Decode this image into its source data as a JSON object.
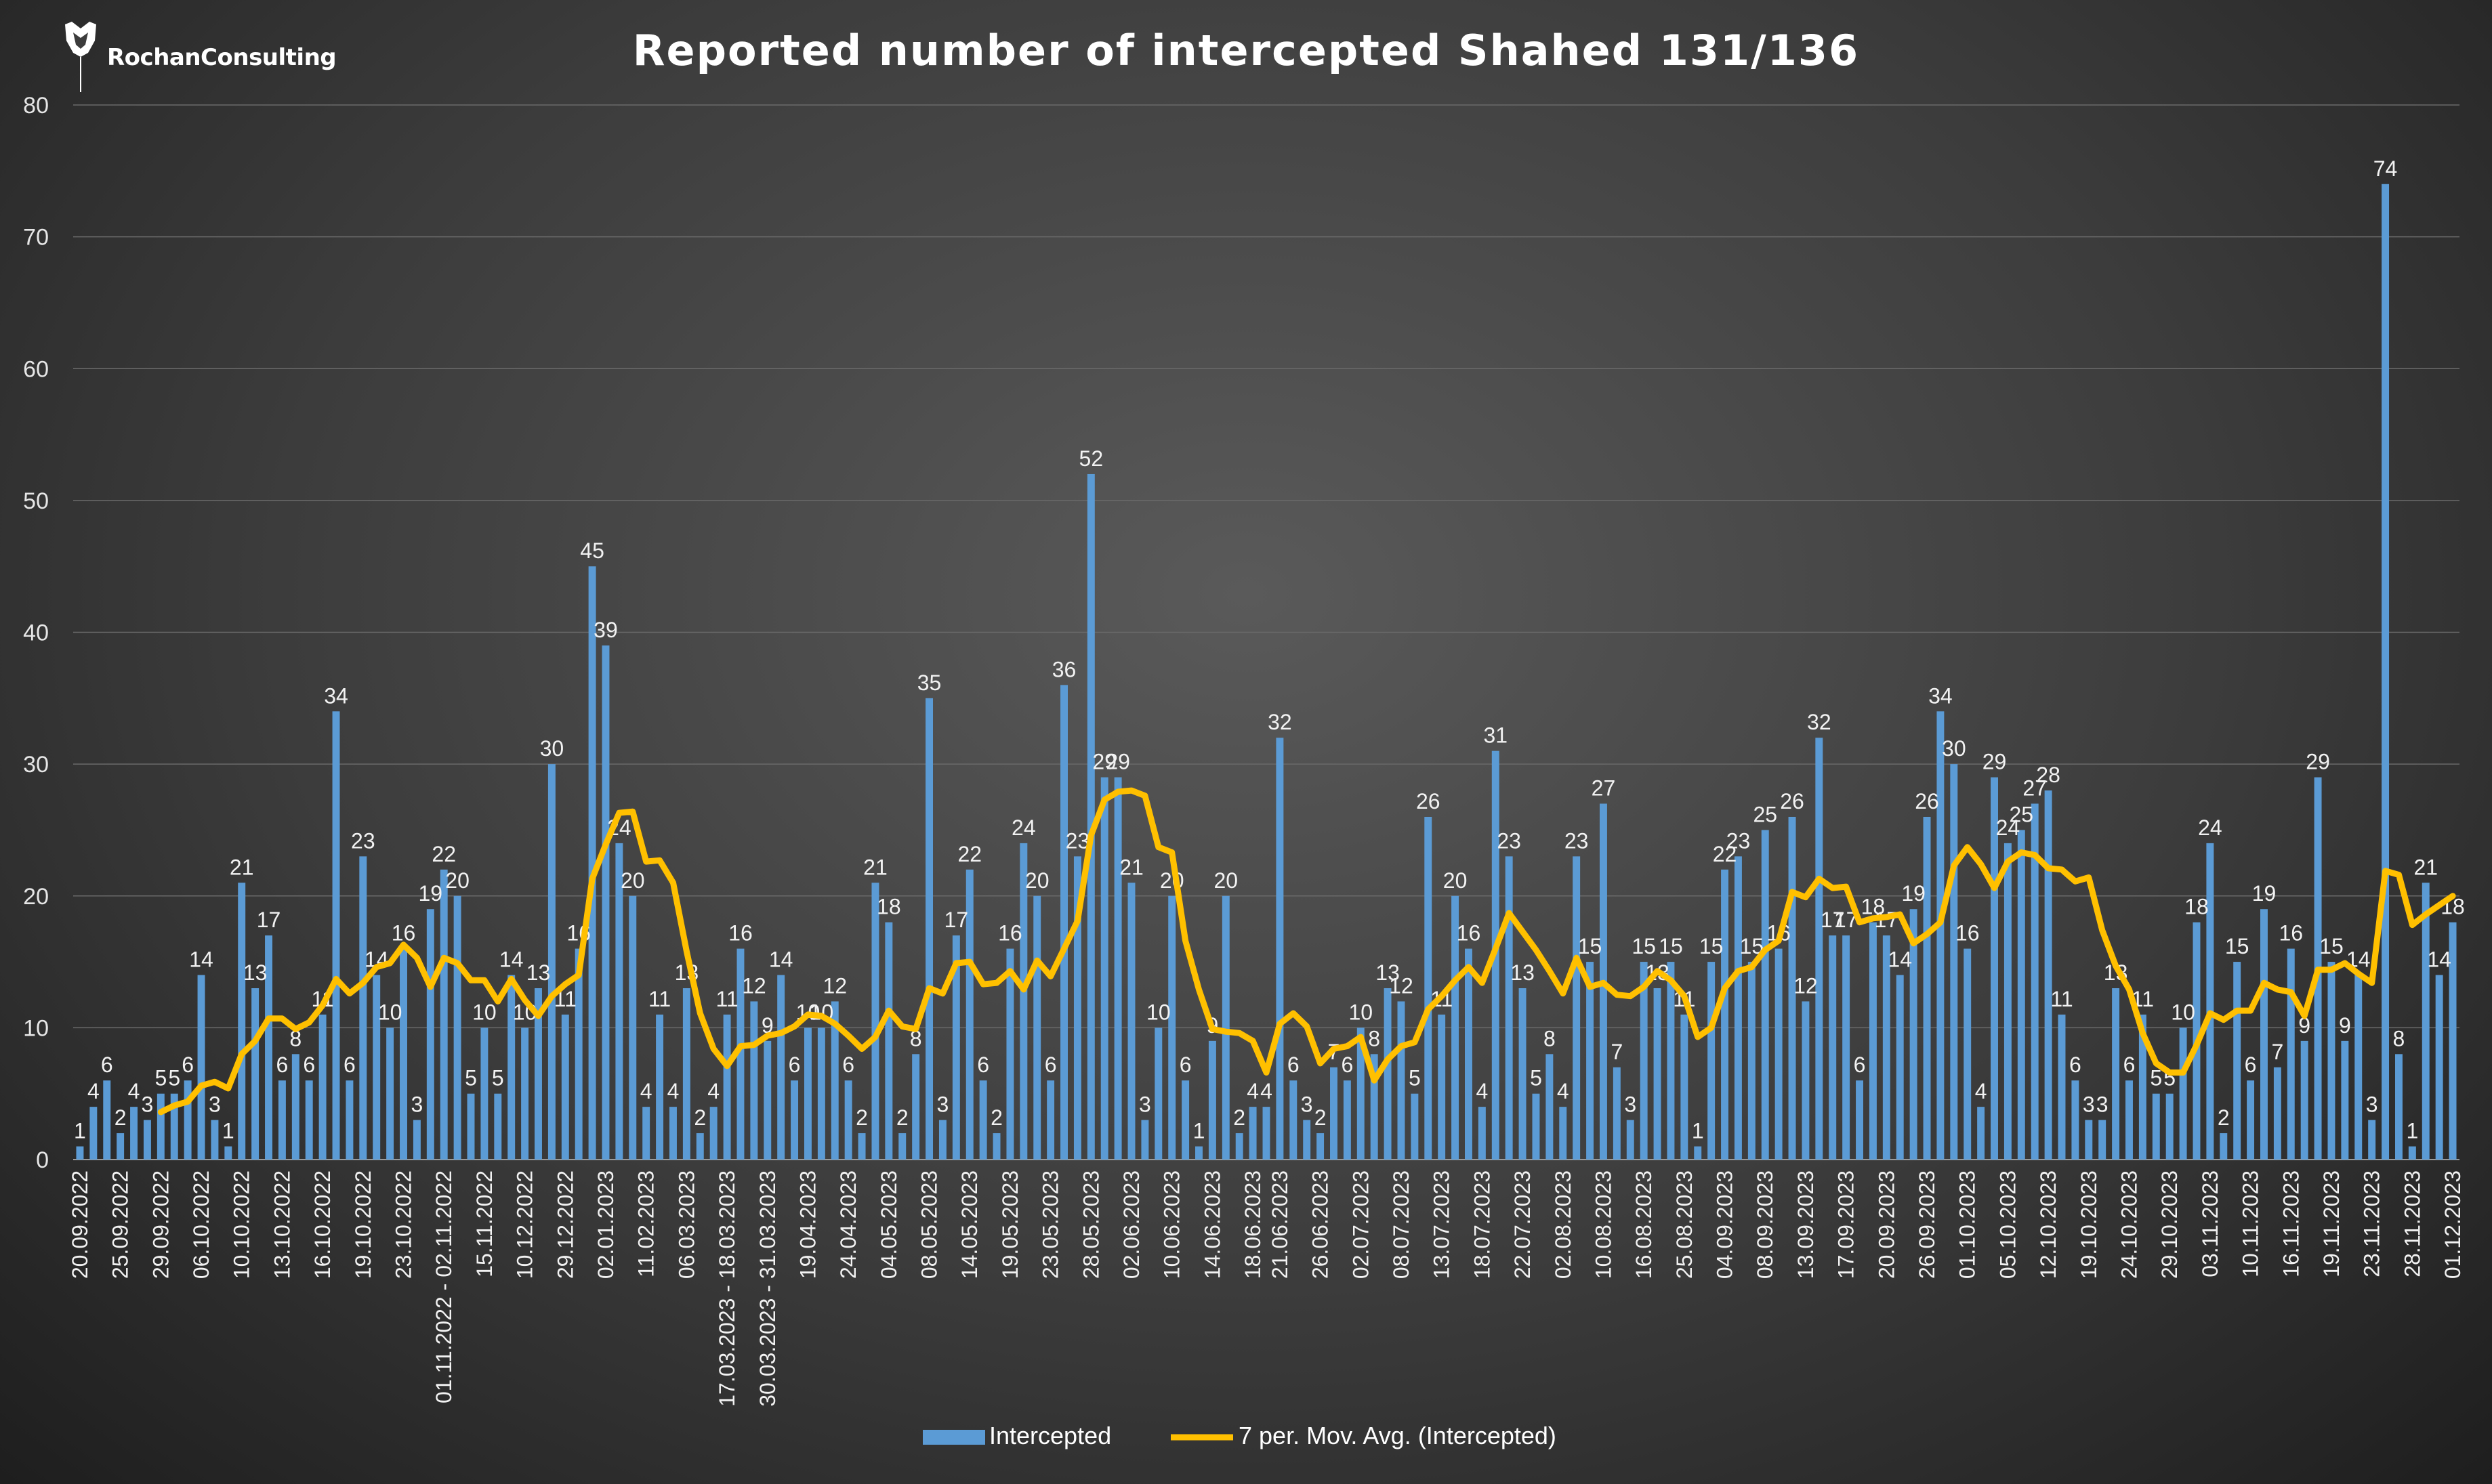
{
  "brand": {
    "name": "RochanConsulting"
  },
  "chart_data": {
    "type": "bar",
    "title": "Reported number of intercepted Shahed 131/136",
    "xlabel": "",
    "ylabel": "",
    "ylim": [
      0,
      80
    ],
    "yticks": [
      0,
      10,
      20,
      30,
      40,
      50,
      60,
      70,
      80
    ],
    "grid": true,
    "legend_position": "bottom",
    "colors": {
      "bar": "#5b9bd5",
      "line": "#ffc000",
      "text": "#ffffff",
      "grid": "#6a6a6a"
    },
    "x_tick_labels": [
      "20.09.2022",
      "25.09.2022",
      "29.09.2022",
      "06.10.2022",
      "10.10.2022",
      "13.10.2022",
      "16.10.2022",
      "19.10.2022",
      "23.10.2022",
      "01.11.2022 - 02.11.2022",
      "15.11.2022",
      "10.12.2022",
      "29.12.2022",
      "02.01.2023",
      "11.02.2023",
      "06.03.2023",
      "17.03.2023 - 18.03.2023",
      "30.03.2023 - 31.03.2023",
      "19.04.2023",
      "24.04.2023",
      "04.05.2023",
      "08.05.2023",
      "14.05.2023",
      "19.05.2023",
      "23.05.2023",
      "28.05.2023",
      "02.06.2023",
      "10.06.2023",
      "14.06.2023",
      "18.06.2023",
      "21.06.2023",
      "26.06.2023",
      "02.07.2023",
      "08.07.2023",
      "13.07.2023",
      "18.07.2023",
      "22.07.2023",
      "02.08.2023",
      "10.08.2023",
      "16.08.2023",
      "25.08.2023",
      "04.09.2023",
      "08.09.2023",
      "13.09.2023",
      "17.09.2023",
      "20.09.2023",
      "26.09.2023",
      "01.10.2023",
      "05.10.2023",
      "12.10.2023",
      "19.10.2023",
      "24.10.2023",
      "29.10.2023",
      "03.11.2023",
      "10.11.2023",
      "16.11.2023",
      "19.11.2023",
      "23.11.2023",
      "28.11.2023",
      "01.12.2023"
    ],
    "series": [
      {
        "name": "Intercepted",
        "type": "bar",
        "values": [
          1,
          4,
          6,
          2,
          4,
          3,
          5,
          5,
          6,
          14,
          3,
          1,
          21,
          13,
          17,
          6,
          8,
          6,
          11,
          34,
          6,
          23,
          14,
          10,
          16,
          3,
          19,
          22,
          20,
          5,
          10,
          5,
          14,
          10,
          13,
          30,
          11,
          16,
          45,
          39,
          24,
          20,
          4,
          11,
          4,
          13,
          2,
          4,
          11,
          16,
          12,
          9,
          14,
          6,
          10,
          10,
          12,
          6,
          2,
          21,
          18,
          2,
          8,
          35,
          3,
          17,
          22,
          6,
          2,
          16,
          24,
          20,
          6,
          36,
          23,
          52,
          29,
          29,
          21,
          3,
          10,
          20,
          6,
          1,
          9,
          20,
          2,
          4,
          4,
          32,
          6,
          3,
          2,
          7,
          6,
          10,
          8,
          13,
          12,
          5,
          26,
          11,
          20,
          16,
          4,
          31,
          23,
          13,
          5,
          8,
          4,
          23,
          15,
          27,
          7,
          3,
          15,
          13,
          15,
          11,
          1,
          15,
          22,
          23,
          15,
          25,
          16,
          26,
          12,
          32,
          17,
          17,
          6,
          18,
          17,
          14,
          19,
          26,
          34,
          30,
          16,
          4,
          29,
          24,
          25,
          27,
          28,
          11,
          6,
          3,
          3,
          13,
          6,
          11,
          5,
          5,
          10,
          18,
          24,
          2,
          15,
          6,
          19,
          7,
          16,
          9,
          29,
          15,
          9,
          14,
          3,
          74,
          8,
          1,
          21,
          14,
          18
        ]
      },
      {
        "name": "7 per. Mov. Avg. (Intercepted)",
        "type": "line",
        "values": [
          null,
          null,
          null,
          null,
          null,
          null,
          3.6,
          4.1,
          4.4,
          5.6,
          5.9,
          5.4,
          8.0,
          9.0,
          10.7,
          10.7,
          9.9,
          10.4,
          11.7,
          13.7,
          12.6,
          13.4,
          14.6,
          14.9,
          16.3,
          15.3,
          13.1,
          15.3,
          14.9,
          13.6,
          13.6,
          12.0,
          13.7,
          12.1,
          10.9,
          12.4,
          13.3,
          14.0,
          21.3,
          23.9,
          26.3,
          26.4,
          22.6,
          22.7,
          21.0,
          15.8,
          11.1,
          8.4,
          7.1,
          8.6,
          8.7,
          9.4,
          9.6,
          10.1,
          11.0,
          10.9,
          10.3,
          9.4,
          8.4,
          9.3,
          11.3,
          10.1,
          9.9,
          13.0,
          12.6,
          14.9,
          15.0,
          13.3,
          13.4,
          14.3,
          12.9,
          15.1,
          13.9,
          16.0,
          18.1,
          24.6,
          27.3,
          27.9,
          28.0,
          27.6,
          23.7,
          23.3,
          16.6,
          12.9,
          9.9,
          9.7,
          9.6,
          9.0,
          6.6,
          10.3,
          11.1,
          10.1,
          7.3,
          8.4,
          8.6,
          9.3,
          6.0,
          7.6,
          8.6,
          8.9,
          11.4,
          12.4,
          13.6,
          14.6,
          13.4,
          16.0,
          18.7,
          17.3,
          15.9,
          14.3,
          12.6,
          15.3,
          13.1,
          13.4,
          12.5,
          12.4,
          13.1,
          14.3,
          13.6,
          12.4,
          9.3,
          10.0,
          13.0,
          14.3,
          14.6,
          15.9,
          16.6,
          20.3,
          19.9,
          21.3,
          20.6,
          20.7,
          18.0,
          18.3,
          18.4,
          18.6,
          16.4,
          17.1,
          18.0,
          22.3,
          23.7,
          22.4,
          20.6,
          22.6,
          23.3,
          23.1,
          22.1,
          22.0,
          21.1,
          21.4,
          17.4,
          14.7,
          12.9,
          9.6,
          7.3,
          6.6,
          6.6,
          8.7,
          11.1,
          10.6,
          11.3,
          11.3,
          13.4,
          12.9,
          12.7,
          10.9,
          14.4,
          14.4,
          14.9,
          14.1,
          13.4,
          21.9,
          21.6,
          17.8,
          18.6,
          19.3,
          20.0
        ]
      }
    ]
  }
}
